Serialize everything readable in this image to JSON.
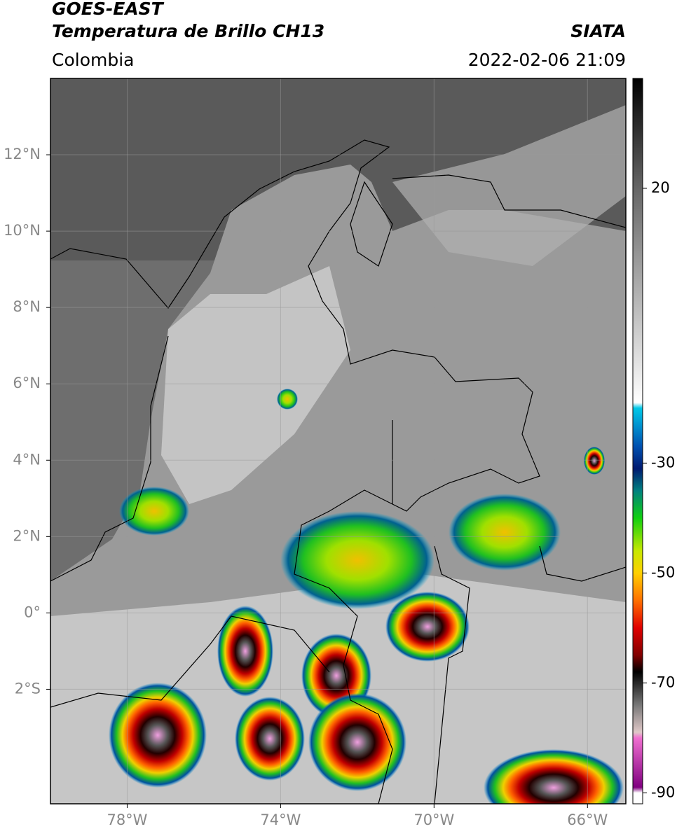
{
  "header": {
    "title": "GOES-EAST",
    "subtitle": "Temperatura de Brillo CH13",
    "region": "Colombia",
    "source": "SIATA",
    "datetime": "2022-02-06 21:09"
  },
  "map": {
    "xlim": [
      -80,
      -65
    ],
    "ylim": [
      -5,
      14
    ],
    "xticks": [
      {
        "value": -78,
        "label": "78°W"
      },
      {
        "value": -74,
        "label": "74°W"
      },
      {
        "value": -70,
        "label": "70°W"
      },
      {
        "value": -66,
        "label": "66°W"
      }
    ],
    "yticks": [
      {
        "value": 12,
        "label": "12°N"
      },
      {
        "value": 10,
        "label": "10°N"
      },
      {
        "value": 8,
        "label": "8°N"
      },
      {
        "value": 6,
        "label": "6°N"
      },
      {
        "value": 4,
        "label": "4°N"
      },
      {
        "value": 2,
        "label": "2°N"
      },
      {
        "value": 0,
        "label": "0°"
      },
      {
        "value": -2,
        "label": "2°S"
      }
    ],
    "grid": true
  },
  "colorbar": {
    "lim": [
      -92,
      40
    ],
    "ticks": [
      20,
      -30,
      -50,
      -70,
      -90
    ],
    "colormap": [
      {
        "value": 40,
        "color": "#000000"
      },
      {
        "value": 20,
        "color": "#666666"
      },
      {
        "value": -19,
        "color": "#ffffff"
      },
      {
        "value": -20,
        "color": "#00c8e8"
      },
      {
        "value": -27,
        "color": "#0050b0"
      },
      {
        "value": -31,
        "color": "#001a70"
      },
      {
        "value": -35,
        "color": "#008080"
      },
      {
        "value": -40,
        "color": "#10d010"
      },
      {
        "value": -46,
        "color": "#c8e800"
      },
      {
        "value": -50,
        "color": "#ffd000"
      },
      {
        "value": -55,
        "color": "#ff7000"
      },
      {
        "value": -60,
        "color": "#e00000"
      },
      {
        "value": -65,
        "color": "#800000"
      },
      {
        "value": -68,
        "color": "#000000"
      },
      {
        "value": -74,
        "color": "#777777"
      },
      {
        "value": -79,
        "color": "#e0c8c8"
      },
      {
        "value": -80,
        "color": "#f070d0"
      },
      {
        "value": -89,
        "color": "#800080"
      },
      {
        "value": -90,
        "color": "#ffffff"
      }
    ]
  }
}
